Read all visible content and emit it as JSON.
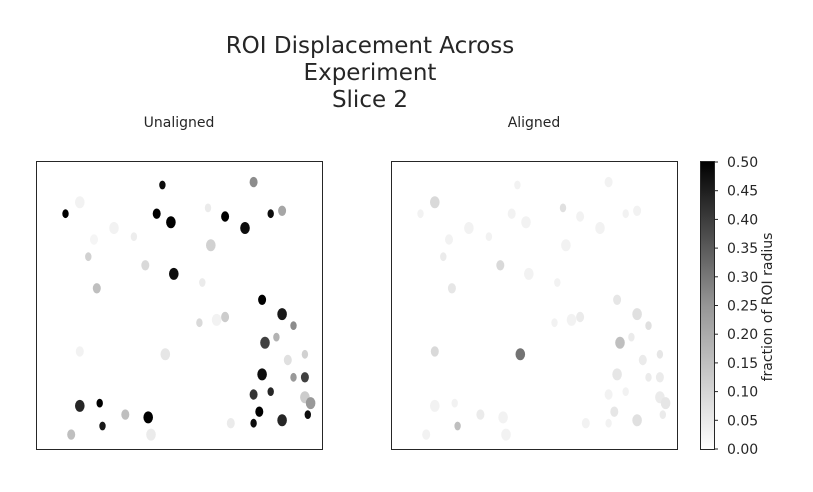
{
  "chart_data": {
    "type": "heatmap",
    "title_lines": [
      "ROI Displacement Across",
      "Experiment",
      "Slice 2"
    ],
    "panels": [
      {
        "title": "Unaligned",
        "rois": [
          [
            0.44,
            0.08,
            0.95
          ],
          [
            0.76,
            0.07,
            0.45
          ],
          [
            0.15,
            0.14,
            0.05
          ],
          [
            0.1,
            0.18,
            1.0
          ],
          [
            0.42,
            0.18,
            1.0
          ],
          [
            0.47,
            0.21,
            1.0
          ],
          [
            0.6,
            0.16,
            0.08
          ],
          [
            0.66,
            0.19,
            1.0
          ],
          [
            0.73,
            0.23,
            0.95
          ],
          [
            0.82,
            0.18,
            0.95
          ],
          [
            0.86,
            0.17,
            0.35
          ],
          [
            0.27,
            0.23,
            0.05
          ],
          [
            0.34,
            0.26,
            0.07
          ],
          [
            0.2,
            0.27,
            0.04
          ],
          [
            0.61,
            0.29,
            0.18
          ],
          [
            0.18,
            0.33,
            0.18
          ],
          [
            0.38,
            0.36,
            0.15
          ],
          [
            0.48,
            0.39,
            0.95
          ],
          [
            0.58,
            0.42,
            0.08
          ],
          [
            0.21,
            0.44,
            0.25
          ],
          [
            0.63,
            0.55,
            0.05
          ],
          [
            0.57,
            0.56,
            0.15
          ],
          [
            0.79,
            0.48,
            1.0
          ],
          [
            0.86,
            0.53,
            0.9
          ],
          [
            0.9,
            0.57,
            0.45
          ],
          [
            0.66,
            0.54,
            0.2
          ],
          [
            0.8,
            0.63,
            0.75
          ],
          [
            0.84,
            0.61,
            0.3
          ],
          [
            0.15,
            0.66,
            0.05
          ],
          [
            0.45,
            0.67,
            0.1
          ],
          [
            0.94,
            0.67,
            0.18
          ],
          [
            0.88,
            0.69,
            0.12
          ],
          [
            0.79,
            0.74,
            0.95
          ],
          [
            0.9,
            0.75,
            0.4
          ],
          [
            0.94,
            0.75,
            0.75
          ],
          [
            0.94,
            0.82,
            0.2
          ],
          [
            0.82,
            0.8,
            0.85
          ],
          [
            0.76,
            0.81,
            0.8
          ],
          [
            0.96,
            0.84,
            0.4
          ],
          [
            0.95,
            0.88,
            0.95
          ],
          [
            0.78,
            0.87,
            1.0
          ],
          [
            0.86,
            0.9,
            0.85
          ],
          [
            0.76,
            0.91,
            0.95
          ],
          [
            0.68,
            0.91,
            0.08
          ],
          [
            0.15,
            0.85,
            0.85
          ],
          [
            0.22,
            0.84,
            1.0
          ],
          [
            0.31,
            0.88,
            0.25
          ],
          [
            0.39,
            0.89,
            1.0
          ],
          [
            0.23,
            0.92,
            0.9
          ],
          [
            0.12,
            0.95,
            0.25
          ],
          [
            0.4,
            0.95,
            0.08
          ]
        ]
      },
      {
        "title": "Aligned",
        "rois": [
          [
            0.44,
            0.08,
            0.05
          ],
          [
            0.76,
            0.07,
            0.05
          ],
          [
            0.15,
            0.14,
            0.15
          ],
          [
            0.1,
            0.18,
            0.05
          ],
          [
            0.42,
            0.18,
            0.05
          ],
          [
            0.47,
            0.21,
            0.05
          ],
          [
            0.6,
            0.16,
            0.12
          ],
          [
            0.66,
            0.19,
            0.05
          ],
          [
            0.73,
            0.23,
            0.05
          ],
          [
            0.82,
            0.18,
            0.05
          ],
          [
            0.86,
            0.17,
            0.05
          ],
          [
            0.27,
            0.23,
            0.05
          ],
          [
            0.34,
            0.26,
            0.05
          ],
          [
            0.2,
            0.27,
            0.05
          ],
          [
            0.61,
            0.29,
            0.05
          ],
          [
            0.18,
            0.33,
            0.08
          ],
          [
            0.38,
            0.36,
            0.15
          ],
          [
            0.48,
            0.39,
            0.05
          ],
          [
            0.58,
            0.42,
            0.05
          ],
          [
            0.21,
            0.44,
            0.1
          ],
          [
            0.63,
            0.55,
            0.05
          ],
          [
            0.57,
            0.56,
            0.05
          ],
          [
            0.79,
            0.48,
            0.1
          ],
          [
            0.86,
            0.53,
            0.12
          ],
          [
            0.9,
            0.57,
            0.12
          ],
          [
            0.66,
            0.54,
            0.08
          ],
          [
            0.8,
            0.63,
            0.25
          ],
          [
            0.84,
            0.61,
            0.08
          ],
          [
            0.15,
            0.66,
            0.15
          ],
          [
            0.45,
            0.67,
            0.55
          ],
          [
            0.94,
            0.67,
            0.1
          ],
          [
            0.88,
            0.69,
            0.08
          ],
          [
            0.79,
            0.74,
            0.1
          ],
          [
            0.9,
            0.75,
            0.08
          ],
          [
            0.94,
            0.75,
            0.08
          ],
          [
            0.94,
            0.82,
            0.08
          ],
          [
            0.82,
            0.8,
            0.05
          ],
          [
            0.76,
            0.81,
            0.05
          ],
          [
            0.96,
            0.84,
            0.1
          ],
          [
            0.95,
            0.88,
            0.08
          ],
          [
            0.78,
            0.87,
            0.1
          ],
          [
            0.86,
            0.9,
            0.12
          ],
          [
            0.76,
            0.91,
            0.05
          ],
          [
            0.68,
            0.91,
            0.05
          ],
          [
            0.15,
            0.85,
            0.05
          ],
          [
            0.22,
            0.84,
            0.05
          ],
          [
            0.31,
            0.88,
            0.08
          ],
          [
            0.39,
            0.89,
            0.05
          ],
          [
            0.23,
            0.92,
            0.25
          ],
          [
            0.12,
            0.95,
            0.05
          ],
          [
            0.4,
            0.95,
            0.05
          ]
        ]
      }
    ],
    "colorbar": {
      "label": "fraction of ROI radius",
      "min": 0.0,
      "max": 0.5,
      "ticks": [
        "0.00",
        "0.05",
        "0.10",
        "0.15",
        "0.20",
        "0.25",
        "0.30",
        "0.35",
        "0.40",
        "0.45",
        "0.50"
      ],
      "cmap": "Greys"
    },
    "axes_ticks": "none"
  }
}
